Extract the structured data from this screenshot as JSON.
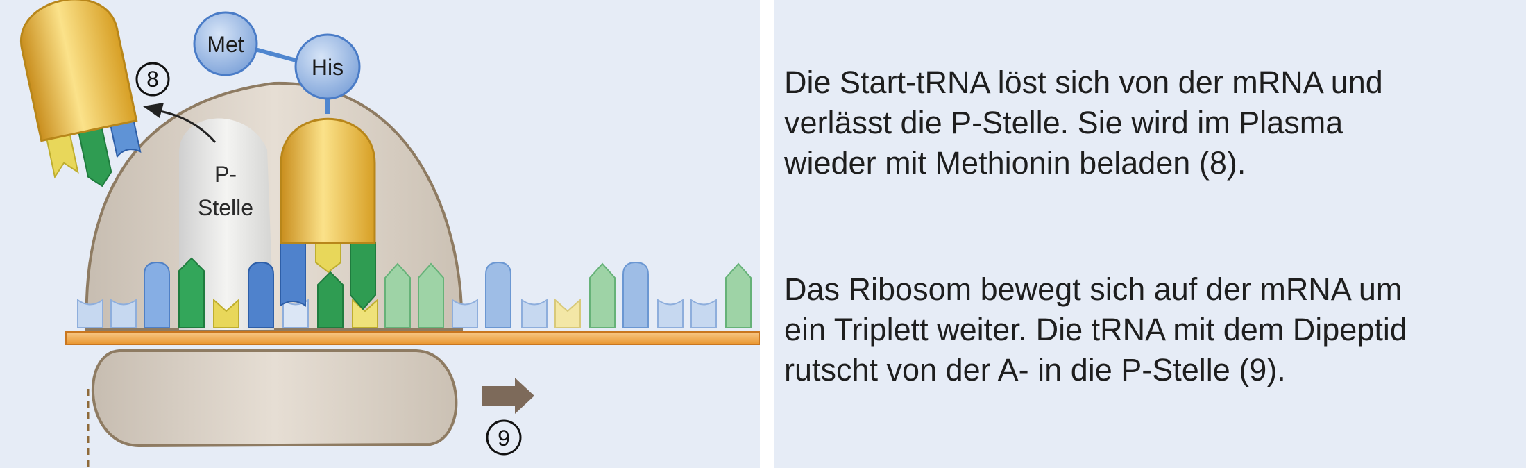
{
  "diagram": {
    "amino_acids": [
      "Met",
      "His"
    ],
    "p_site_label": [
      "P-",
      "Stelle"
    ],
    "step_markers": [
      "8",
      "9"
    ],
    "colors": {
      "background": "#e6ecf6",
      "ribosome": "#dcd3c8",
      "ribosome_outline": "#8e7b62",
      "trna_body": "#e8b83c",
      "mrna_strand": "#f2ad5c",
      "amino_acid": "#8fb1e0",
      "base_blue": "#5a8fd3",
      "base_green": "#33a65a",
      "base_yellow": "#e3d85a",
      "arrow_brown": "#7d6a5a"
    }
  },
  "text": {
    "paragraph_1": [
      "Die Start-tRNA löst sich von der mRNA und",
      "verlässt die P-Stelle. Sie wird im Plasma",
      "wieder mit Methionin beladen (8)."
    ],
    "paragraph_2": [
      "Das Ribosom bewegt sich auf der mRNA um",
      "ein Triplett weiter. Die tRNA mit dem Dipeptid",
      "rutscht von der A- in die P-Stelle (9)."
    ]
  }
}
